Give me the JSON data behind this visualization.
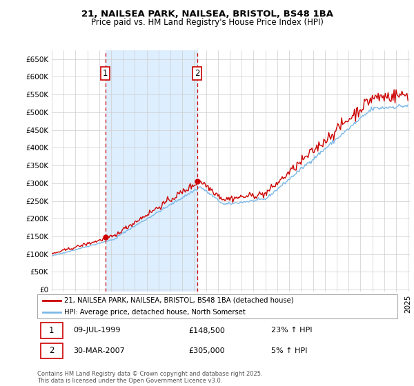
{
  "title_line1": "21, NAILSEA PARK, NAILSEA, BRISTOL, BS48 1BA",
  "title_line2": "Price paid vs. HM Land Registry's House Price Index (HPI)",
  "background_color": "#ffffff",
  "grid_color": "#cccccc",
  "hpi_color": "#7ab8e8",
  "price_color": "#cc0000",
  "vline_color": "#cc0000",
  "shade_color": "#ddeeff",
  "legend_line1": "21, NAILSEA PARK, NAILSEA, BRISTOL, BS48 1BA (detached house)",
  "legend_line2": "HPI: Average price, detached house, North Somerset",
  "footer": "Contains HM Land Registry data © Crown copyright and database right 2025.\nThis data is licensed under the Open Government Licence v3.0.",
  "ytick_labels": [
    "£0",
    "£50K",
    "£100K",
    "£150K",
    "£200K",
    "£250K",
    "£300K",
    "£350K",
    "£400K",
    "£450K",
    "£500K",
    "£550K",
    "£600K",
    "£650K"
  ],
  "yticks": [
    0,
    50000,
    100000,
    150000,
    200000,
    250000,
    300000,
    350000,
    400000,
    450000,
    500000,
    550000,
    600000,
    650000
  ],
  "ylim": [
    -5000,
    675000
  ],
  "sale1_price": 148500,
  "sale2_price": 305000,
  "sale1_year": 1999,
  "sale1_month": 7,
  "sale1_day": 9,
  "sale2_year": 2007,
  "sale2_month": 3,
  "sale2_day": 30
}
